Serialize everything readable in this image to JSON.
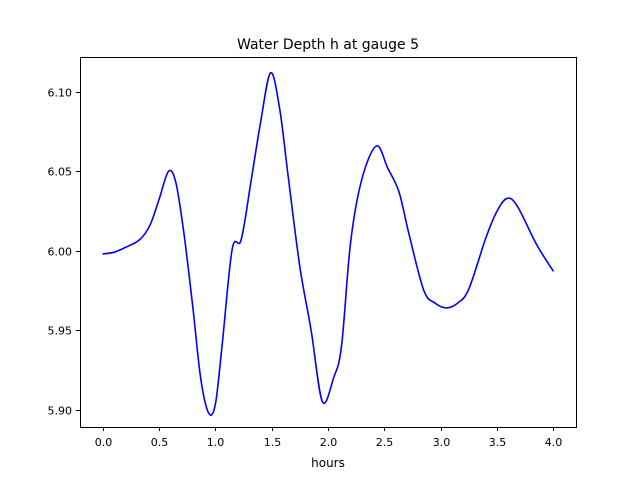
{
  "chart_data": {
    "type": "line",
    "title": "Water Depth h at gauge 5",
    "xlabel": "hours",
    "ylabel": "",
    "xlim": [
      -0.2,
      4.2
    ],
    "ylim": [
      5.889,
      6.122
    ],
    "xticks": [
      0.0,
      0.5,
      1.0,
      1.5,
      2.0,
      2.5,
      3.0,
      3.5,
      4.0
    ],
    "xtick_labels": [
      "0.0",
      "0.5",
      "1.0",
      "1.5",
      "2.0",
      "2.5",
      "3.0",
      "3.5",
      "4.0"
    ],
    "yticks": [
      5.9,
      5.95,
      6.0,
      6.05,
      6.1
    ],
    "ytick_labels": [
      "5.90",
      "5.95",
      "6.00",
      "6.05",
      "6.10"
    ],
    "grid": false,
    "series": [
      {
        "name": "h",
        "color": "#0000ff",
        "x": [
          0.0,
          0.1,
          0.2,
          0.33,
          0.42,
          0.5,
          0.585,
          0.65,
          0.72,
          0.8,
          0.87,
          0.94,
          1.0,
          1.06,
          1.15,
          1.23,
          1.32,
          1.4,
          1.49,
          1.57,
          1.65,
          1.75,
          1.85,
          1.95,
          2.05,
          2.12,
          2.2,
          2.3,
          2.43,
          2.53,
          2.63,
          2.72,
          2.85,
          2.95,
          3.05,
          3.15,
          3.25,
          3.4,
          3.5,
          3.59,
          3.68,
          3.85,
          4.0
        ],
        "y": [
          5.998,
          5.999,
          6.002,
          6.007,
          6.016,
          6.032,
          6.05,
          6.043,
          6.012,
          5.965,
          5.92,
          5.898,
          5.903,
          5.94,
          6.001,
          6.007,
          6.045,
          6.08,
          6.112,
          6.09,
          6.045,
          5.99,
          5.95,
          5.905,
          5.92,
          5.94,
          6.005,
          6.045,
          6.066,
          6.052,
          6.037,
          6.01,
          5.975,
          5.967,
          5.964,
          5.967,
          5.976,
          6.008,
          6.025,
          6.033,
          6.028,
          6.004,
          5.987
        ]
      }
    ]
  }
}
